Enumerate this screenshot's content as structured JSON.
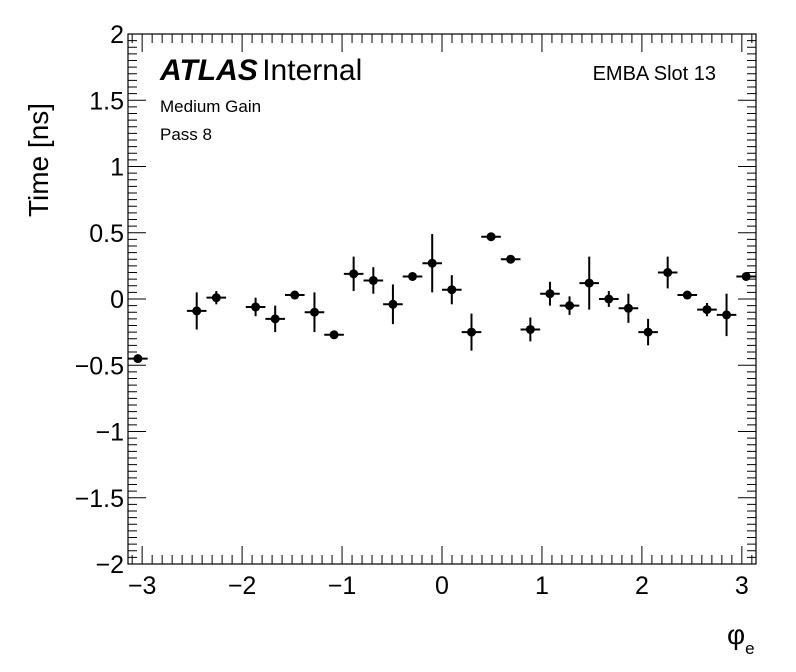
{
  "chart_data": {
    "type": "scatter",
    "ylabel": "Time [ns]",
    "xlabel": "φ_e",
    "xlabel_main": "φ",
    "xlabel_sub": "e",
    "xlim": [
      -3.14159,
      3.14159
    ],
    "ylim": [
      -2,
      2
    ],
    "grid": false,
    "x_tick_labels": [
      "−3",
      "−2",
      "−1",
      "0",
      "1",
      "2",
      "3"
    ],
    "x_tick_values": [
      -3,
      -2,
      -1,
      0,
      1,
      2,
      3
    ],
    "y_tick_labels": [
      "2",
      "1.5",
      "1",
      "0.5",
      "0",
      "−0.5",
      "−1",
      "−1.5",
      "−2"
    ],
    "y_tick_values": [
      2,
      1.5,
      1,
      0.5,
      0,
      -0.5,
      -1,
      -1.5,
      -2
    ],
    "atlas_label": "ATLAS",
    "atlas_sublabel": "Internal",
    "module_label": "EMBA Slot 13",
    "gain_label": "Medium Gain",
    "pass_label": "Pass 8",
    "series": [
      {
        "x": [
          -3.043,
          -2.454,
          -2.258,
          -1.865,
          -1.669,
          -1.473,
          -1.276,
          -1.08,
          -0.884,
          -0.687,
          -0.491,
          -0.295,
          -0.098,
          0.098,
          0.295,
          0.491,
          0.687,
          0.884,
          1.08,
          1.276,
          1.473,
          1.669,
          1.865,
          2.062,
          2.258,
          2.454,
          2.651,
          2.847,
          3.043
        ],
        "y": [
          -0.45,
          -0.09,
          0.01,
          -0.06,
          -0.15,
          0.03,
          -0.1,
          -0.27,
          0.19,
          0.14,
          -0.04,
          0.17,
          0.27,
          0.07,
          -0.25,
          0.47,
          0.3,
          -0.23,
          0.04,
          -0.05,
          0.12,
          0.0,
          -0.07,
          -0.25,
          0.2,
          0.03,
          -0.08,
          -0.12,
          0.17
        ],
        "yerr": [
          0.02,
          0.14,
          0.05,
          0.07,
          0.1,
          0.02,
          0.15,
          0.02,
          0.13,
          0.1,
          0.15,
          0.02,
          0.22,
          0.11,
          0.14,
          0.01,
          0.02,
          0.09,
          0.09,
          0.07,
          0.2,
          0.06,
          0.11,
          0.1,
          0.12,
          0.02,
          0.05,
          0.16,
          0.02
        ],
        "xerr": 0.098
      }
    ]
  }
}
